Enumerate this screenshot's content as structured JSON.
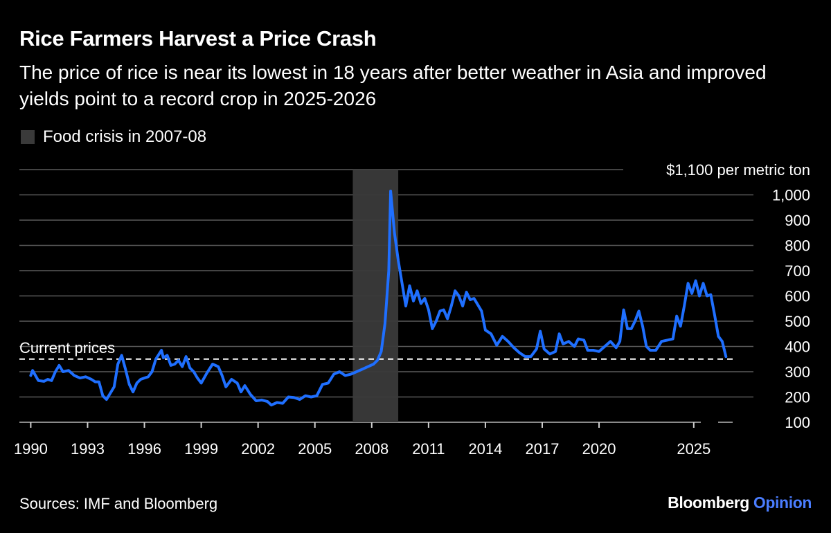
{
  "header": {
    "title": "Rice Farmers Harvest a Price Crash",
    "subtitle": "The price of rice is near its lowest in 18 years after better weather in Asia and improved yields point to a record crop in 2025-2026"
  },
  "legend": {
    "label": "Food crisis in 2007-08",
    "swatch_color": "#3a3a3a"
  },
  "footer": {
    "source": "Sources: IMF and Bloomberg",
    "brand_main": "Bloomberg",
    "brand_accent": "Opinion",
    "brand_accent_color": "#4a7dff"
  },
  "chart_data": {
    "type": "line",
    "xlim": [
      1989.4,
      2027.2
    ],
    "ylim": [
      100,
      1100
    ],
    "x_ticks": [
      1990,
      1993,
      1996,
      1999,
      2002,
      2005,
      2008,
      2011,
      2014,
      2017,
      2020,
      2025
    ],
    "x_tick_labels": [
      "1990",
      "1993",
      "1996",
      "1999",
      "2002",
      "2005",
      "2008",
      "2011",
      "2014",
      "2017",
      "2020",
      "2025"
    ],
    "y_ticks": [
      100,
      200,
      300,
      400,
      500,
      600,
      700,
      800,
      900,
      1000,
      1100
    ],
    "y_tick_labels": [
      "100",
      "200",
      "300",
      "400",
      "500",
      "600",
      "700",
      "800",
      "900",
      "1,000",
      "$1,100 per metric ton"
    ],
    "grid": true,
    "shaded_region": {
      "x_start": 2007.0,
      "x_end": 2009.4,
      "label": "Food crisis in 2007-08",
      "color": "#3a3a3a"
    },
    "reference_line": {
      "y": 350,
      "label": "Current prices",
      "style": "dashed"
    },
    "series": [
      {
        "color": "#1f6fff",
        "points": [
          [
            1990.0,
            285
          ],
          [
            1990.1,
            305
          ],
          [
            1990.4,
            265
          ],
          [
            1990.7,
            262
          ],
          [
            1990.9,
            270
          ],
          [
            1991.1,
            265
          ],
          [
            1991.3,
            300
          ],
          [
            1991.5,
            325
          ],
          [
            1991.7,
            300
          ],
          [
            1992.0,
            305
          ],
          [
            1992.3,
            285
          ],
          [
            1992.6,
            275
          ],
          [
            1992.9,
            280
          ],
          [
            1993.2,
            270
          ],
          [
            1993.4,
            260
          ],
          [
            1993.6,
            260
          ],
          [
            1993.8,
            205
          ],
          [
            1994.0,
            190
          ],
          [
            1994.2,
            215
          ],
          [
            1994.4,
            240
          ],
          [
            1994.6,
            330
          ],
          [
            1994.8,
            365
          ],
          [
            1995.0,
            310
          ],
          [
            1995.2,
            250
          ],
          [
            1995.4,
            220
          ],
          [
            1995.6,
            255
          ],
          [
            1995.8,
            270
          ],
          [
            1996.0,
            275
          ],
          [
            1996.2,
            280
          ],
          [
            1996.4,
            300
          ],
          [
            1996.6,
            350
          ],
          [
            1996.9,
            385
          ],
          [
            1997.0,
            355
          ],
          [
            1997.2,
            365
          ],
          [
            1997.4,
            325
          ],
          [
            1997.6,
            330
          ],
          [
            1997.8,
            345
          ],
          [
            1998.0,
            320
          ],
          [
            1998.2,
            360
          ],
          [
            1998.4,
            315
          ],
          [
            1998.6,
            300
          ],
          [
            1998.8,
            275
          ],
          [
            1999.0,
            255
          ],
          [
            1999.3,
            295
          ],
          [
            1999.6,
            330
          ],
          [
            1999.9,
            320
          ],
          [
            2000.1,
            285
          ],
          [
            2000.3,
            240
          ],
          [
            2000.6,
            270
          ],
          [
            2000.9,
            255
          ],
          [
            2001.1,
            220
          ],
          [
            2001.3,
            245
          ],
          [
            2001.6,
            210
          ],
          [
            2001.9,
            185
          ],
          [
            2002.2,
            188
          ],
          [
            2002.5,
            182
          ],
          [
            2002.7,
            168
          ],
          [
            2003.0,
            178
          ],
          [
            2003.3,
            175
          ],
          [
            2003.6,
            200
          ],
          [
            2003.9,
            198
          ],
          [
            2004.2,
            190
          ],
          [
            2004.5,
            205
          ],
          [
            2004.8,
            200
          ],
          [
            2005.1,
            205
          ],
          [
            2005.4,
            250
          ],
          [
            2005.7,
            255
          ],
          [
            2006.0,
            290
          ],
          [
            2006.3,
            300
          ],
          [
            2006.6,
            285
          ],
          [
            2006.9,
            290
          ],
          [
            2007.2,
            300
          ],
          [
            2007.5,
            310
          ],
          [
            2007.8,
            320
          ],
          [
            2008.1,
            330
          ],
          [
            2008.3,
            345
          ],
          [
            2008.5,
            380
          ],
          [
            2008.7,
            490
          ],
          [
            2008.9,
            700
          ],
          [
            2009.0,
            1015
          ],
          [
            2009.2,
            850
          ],
          [
            2009.4,
            740
          ],
          [
            2009.6,
            650
          ],
          [
            2009.8,
            560
          ],
          [
            2010.0,
            640
          ],
          [
            2010.2,
            580
          ],
          [
            2010.4,
            620
          ],
          [
            2010.6,
            570
          ],
          [
            2010.8,
            590
          ],
          [
            2011.0,
            545
          ],
          [
            2011.2,
            470
          ],
          [
            2011.4,
            500
          ],
          [
            2011.6,
            540
          ],
          [
            2011.8,
            545
          ],
          [
            2012.0,
            510
          ],
          [
            2012.2,
            560
          ],
          [
            2012.4,
            620
          ],
          [
            2012.6,
            600
          ],
          [
            2012.8,
            560
          ],
          [
            2013.0,
            615
          ],
          [
            2013.2,
            585
          ],
          [
            2013.4,
            590
          ],
          [
            2013.6,
            565
          ],
          [
            2013.8,
            540
          ],
          [
            2014.0,
            465
          ],
          [
            2014.3,
            450
          ],
          [
            2014.6,
            405
          ],
          [
            2014.9,
            440
          ],
          [
            2015.2,
            420
          ],
          [
            2015.5,
            395
          ],
          [
            2015.8,
            375
          ],
          [
            2016.1,
            360
          ],
          [
            2016.4,
            360
          ],
          [
            2016.7,
            390
          ],
          [
            2016.9,
            460
          ],
          [
            2017.1,
            390
          ],
          [
            2017.4,
            370
          ],
          [
            2017.7,
            380
          ],
          [
            2017.9,
            450
          ],
          [
            2018.1,
            410
          ],
          [
            2018.4,
            420
          ],
          [
            2018.7,
            400
          ],
          [
            2018.9,
            430
          ],
          [
            2019.2,
            425
          ],
          [
            2019.4,
            385
          ],
          [
            2019.7,
            385
          ],
          [
            2020.0,
            380
          ],
          [
            2020.3,
            400
          ],
          [
            2020.6,
            420
          ],
          [
            2020.9,
            395
          ],
          [
            2021.1,
            420
          ],
          [
            2021.3,
            545
          ],
          [
            2021.5,
            470
          ],
          [
            2021.7,
            470
          ],
          [
            2021.9,
            500
          ],
          [
            2022.1,
            540
          ],
          [
            2022.3,
            480
          ],
          [
            2022.5,
            400
          ],
          [
            2022.7,
            385
          ],
          [
            2023.0,
            385
          ],
          [
            2023.3,
            420
          ],
          [
            2023.6,
            425
          ],
          [
            2023.9,
            430
          ],
          [
            2024.1,
            520
          ],
          [
            2024.3,
            480
          ],
          [
            2024.5,
            560
          ],
          [
            2024.7,
            650
          ],
          [
            2024.9,
            610
          ],
          [
            2025.1,
            660
          ],
          [
            2025.3,
            600
          ],
          [
            2025.5,
            650
          ],
          [
            2025.7,
            600
          ],
          [
            2025.9,
            605
          ],
          [
            2026.1,
            525
          ],
          [
            2026.3,
            440
          ],
          [
            2026.5,
            420
          ],
          [
            2026.7,
            360
          ]
        ]
      }
    ]
  }
}
